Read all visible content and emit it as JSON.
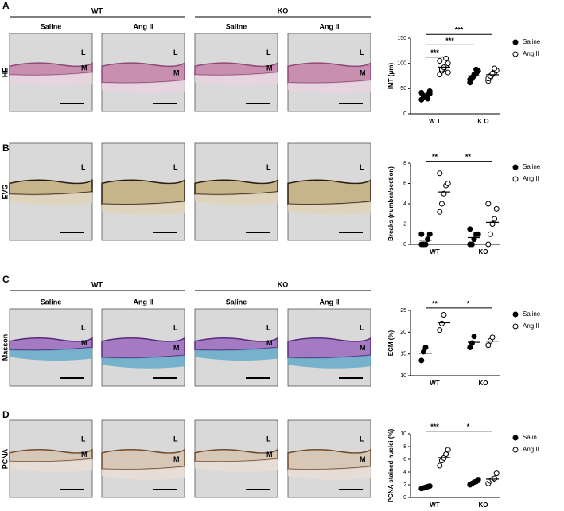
{
  "panels": [
    {
      "letter": "A",
      "stain": "HE",
      "groups": [
        "WT",
        "KO"
      ],
      "conditions": [
        "Saline",
        "Ang II",
        "Saline",
        "Ang II"
      ],
      "images": [
        [
          "L",
          "M"
        ],
        [
          "L",
          "M"
        ],
        [
          "L",
          "M"
        ],
        [
          "L",
          "M"
        ]
      ]
    },
    {
      "letter": "B",
      "stain": "EVG",
      "images": [
        [
          "L"
        ],
        [
          "L"
        ],
        [
          "L"
        ],
        [
          "L"
        ]
      ]
    },
    {
      "letter": "C",
      "stain": "Masson",
      "groups": [
        "WT",
        "KO"
      ],
      "conditions": [
        "Saline",
        "Ang II",
        "Saline",
        "Ang II"
      ],
      "images": [
        [
          "L",
          "M"
        ],
        [
          "L",
          "M"
        ],
        [
          "L",
          "M"
        ],
        [
          "L",
          "M"
        ]
      ]
    },
    {
      "letter": "D",
      "stain": "PCNA",
      "images": [
        [
          "L",
          "M"
        ],
        [
          "L",
          "M"
        ],
        [
          "L",
          "M"
        ],
        [
          "L",
          "M"
        ]
      ]
    }
  ],
  "chart_data": [
    {
      "type": "dot",
      "ylabel": "IMT (μm)",
      "categories": [
        "W T",
        "K O"
      ],
      "ylim": [
        0,
        150
      ],
      "yticks": [
        0,
        50,
        100,
        150
      ],
      "significance": [
        "***",
        "***",
        "***"
      ],
      "series": [
        {
          "name": "Saline",
          "color": "#000000",
          "marker": "filled",
          "values": [
            [
              28,
              32,
              35,
              38,
              40,
              42,
              36,
              33,
              30,
              45
            ],
            [
              62,
              70,
              75,
              80,
              85,
              68,
              72,
              78,
              88
            ]
          ]
        },
        {
          "name": "Ang II",
          "color": "#000000",
          "marker": "open",
          "values": [
            [
              78,
              85,
              90,
              95,
              100,
              105,
              88,
              92,
              110,
              82
            ],
            [
              65,
              72,
              78,
              82,
              86,
              70,
              75,
              80,
              90
            ]
          ]
        }
      ]
    },
    {
      "type": "dot",
      "ylabel": "Breaks (number/section)",
      "categories": [
        "WT",
        "KO"
      ],
      "ylim": [
        0,
        8
      ],
      "yticks": [
        0,
        2,
        4,
        6,
        8
      ],
      "significance": [
        "**",
        "**"
      ],
      "series": [
        {
          "name": "Saline",
          "color": "#000000",
          "marker": "filled",
          "values": [
            [
              0,
              0,
              0,
              0.5,
              1,
              1
            ],
            [
              0,
              0,
              0.5,
              1,
              1,
              1.5
            ]
          ]
        },
        {
          "name": "Ang II",
          "color": "#000000",
          "marker": "open",
          "values": [
            [
              3.2,
              4,
              5,
              5.8,
              6,
              7
            ],
            [
              0,
              1,
              2,
              2.5,
              3.5,
              4
            ]
          ]
        }
      ]
    },
    {
      "type": "dot",
      "ylabel": "ECM (%)",
      "categories": [
        "WT",
        "KO"
      ],
      "ylim": [
        10,
        25
      ],
      "yticks": [
        10,
        15,
        20,
        25
      ],
      "significance": [
        "**",
        "*"
      ],
      "series": [
        {
          "name": "Saline",
          "color": "#000000",
          "marker": "filled",
          "values": [
            [
              13.5,
              15.5,
              16.5
            ],
            [
              16.5,
              17.5,
              19
            ]
          ]
        },
        {
          "name": "Ang II",
          "color": "#000000",
          "marker": "open",
          "values": [
            [
              20.5,
              22,
              24
            ],
            [
              17,
              18,
              18.8
            ]
          ]
        }
      ]
    },
    {
      "type": "dot",
      "ylabel": "PCNA stained nuclei (%)",
      "categories": [
        "WT",
        "KO"
      ],
      "ylim": [
        0,
        10
      ],
      "yticks": [
        0,
        2,
        4,
        6,
        8,
        10
      ],
      "significance": [
        "***",
        "*"
      ],
      "series": [
        {
          "name": "Salin",
          "color": "#000000",
          "marker": "filled",
          "values": [
            [
              1.4,
              1.5,
              1.6,
              1.7,
              1.8
            ],
            [
              2,
              2.2,
              2.4,
              2.5,
              2.8
            ]
          ]
        },
        {
          "name": "Ang II",
          "color": "#000000",
          "marker": "open",
          "values": [
            [
              5,
              5.8,
              6.2,
              6.8,
              7.5
            ],
            [
              2.2,
              2.6,
              2.8,
              3,
              3.8
            ]
          ]
        }
      ]
    }
  ]
}
